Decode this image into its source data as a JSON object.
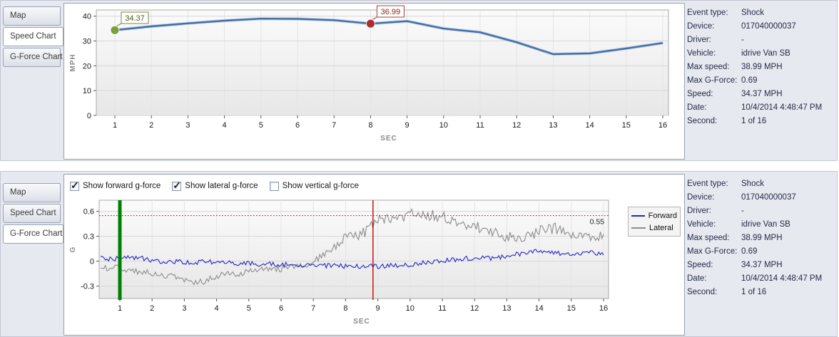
{
  "tabs": {
    "items": [
      "Map",
      "Speed Chart",
      "G-Force Chart"
    ],
    "top_active_index": 1,
    "bottom_active_index": 2
  },
  "checkboxes": [
    {
      "label": "Show forward g-force",
      "checked": true
    },
    {
      "label": "Show lateral g-force",
      "checked": true
    },
    {
      "label": "Show vertical g-force",
      "checked": false
    }
  ],
  "icons": {
    "check_glyph": "✓"
  },
  "event_info": {
    "rows": [
      {
        "label": "Event type:",
        "value": "Shock"
      },
      {
        "label": "Device:",
        "value": "017040000037"
      },
      {
        "label": "Driver:",
        "value": "-"
      },
      {
        "label": "Vehicle:",
        "value": "idrive Van SB"
      },
      {
        "label": "Max speed:",
        "value": "38.99 MPH"
      },
      {
        "label": "Max G-Force:",
        "value": "0.69"
      },
      {
        "label": "Speed:",
        "value": "34.37 MPH"
      },
      {
        "label": "Date:",
        "value": "10/4/2014 4:48:47 PM"
      },
      {
        "label": "Second:",
        "value": "1 of 16"
      }
    ]
  },
  "colors": {
    "panel_bg": "#e7e9f0",
    "speed_line": "#3f6fa8",
    "forward": "#2424c8",
    "lateral": "#8c8c8c",
    "green_marker": "#7aa03c",
    "red_marker": "#a92f2f",
    "green_vline": "#008000",
    "red_vline": "#cc1111",
    "dotted_hline": "#e00000",
    "info_text": "#232c45"
  },
  "chart_data": [
    {
      "id": "speed",
      "type": "line",
      "title": "",
      "xlabel": "SEC",
      "ylabel": "MPH",
      "x": [
        1,
        2,
        3,
        4,
        5,
        6,
        7,
        8,
        9,
        10,
        11,
        12,
        13,
        14,
        15,
        16
      ],
      "values": [
        34.37,
        35.9,
        37.1,
        38.2,
        39.0,
        38.9,
        38.4,
        36.99,
        38.0,
        35.0,
        33.5,
        29.5,
        24.7,
        25.0,
        27.0,
        29.2
      ],
      "xticks": [
        1,
        2,
        3,
        4,
        5,
        6,
        7,
        8,
        9,
        10,
        11,
        12,
        13,
        14,
        15,
        16
      ],
      "yticks": [
        0,
        10,
        20,
        30,
        40
      ],
      "ylim": [
        0,
        42.5
      ],
      "grid": true,
      "line_color": "#3f6fa8",
      "annotations": [
        {
          "x": 1,
          "y": 34.37,
          "label": "34.37",
          "marker_color": "#7aa03c",
          "box_border": "#7c8a45",
          "text_color": "#4c5b1e"
        },
        {
          "x": 8,
          "y": 36.99,
          "label": "36.99",
          "marker_color": "#a92f2f",
          "box_border": "#9c4444",
          "text_color": "#8b2222"
        }
      ]
    },
    {
      "id": "gforce",
      "type": "line",
      "title": "",
      "xlabel": "SEC",
      "ylabel": "G",
      "xticks": [
        1,
        2,
        3,
        4,
        5,
        6,
        7,
        8,
        9,
        10,
        11,
        12,
        13,
        14,
        15,
        16
      ],
      "yticks": [
        -0.3,
        0,
        0.3,
        0.6
      ],
      "ylim": [
        -0.45,
        0.735
      ],
      "grid": true,
      "legend": {
        "position": "right"
      },
      "noise_seed": 7,
      "series": [
        {
          "name": "Forward",
          "color": "#2424c8",
          "amp": 0.03,
          "anchors": [
            [
              1,
              0.03
            ],
            [
              1.5,
              0.05
            ],
            [
              2,
              0
            ],
            [
              3,
              -0.01
            ],
            [
              4,
              -0.01
            ],
            [
              5,
              -0.03
            ],
            [
              6,
              -0.04
            ],
            [
              7,
              -0.05
            ],
            [
              8,
              -0.06
            ],
            [
              9,
              -0.06
            ],
            [
              9.5,
              -0.05
            ],
            [
              10,
              -0.04
            ],
            [
              10.5,
              -0.02
            ],
            [
              11,
              0
            ],
            [
              11.5,
              0.02
            ],
            [
              12,
              0.04
            ],
            [
              12.5,
              0.03
            ],
            [
              13,
              0.06
            ],
            [
              13.5,
              0.1
            ],
            [
              14,
              0.12
            ],
            [
              14.5,
              0.1
            ],
            [
              15,
              0.08
            ],
            [
              15.5,
              0.11
            ],
            [
              16,
              0.09
            ]
          ]
        },
        {
          "name": "Lateral",
          "color": "#8c8c8c",
          "amp": 0.04,
          "anchors": [
            [
              1,
              -0.08
            ],
            [
              1.5,
              -0.12
            ],
            [
              2,
              -0.15
            ],
            [
              2.5,
              -0.17
            ],
            [
              3,
              -0.22
            ],
            [
              3.3,
              -0.26
            ],
            [
              3.6,
              -0.24
            ],
            [
              4,
              -0.18
            ],
            [
              4.5,
              -0.15
            ],
            [
              5,
              -0.13
            ],
            [
              5.5,
              -0.1
            ],
            [
              6,
              -0.09
            ],
            [
              6.5,
              -0.07
            ],
            [
              7,
              -0.01
            ],
            [
              7.5,
              0.12
            ],
            [
              8,
              0.27
            ],
            [
              8.5,
              0.33
            ],
            [
              8.8,
              0.42
            ],
            [
              9,
              0.5
            ],
            [
              9.5,
              0.5
            ],
            [
              10,
              0.56
            ],
            [
              10.3,
              0.6
            ],
            [
              10.6,
              0.55
            ],
            [
              11,
              0.55
            ],
            [
              11.5,
              0.46
            ],
            [
              12,
              0.42
            ],
            [
              12.5,
              0.35
            ],
            [
              13,
              0.3
            ],
            [
              13.5,
              0.26
            ],
            [
              14,
              0.37
            ],
            [
              14.5,
              0.4
            ],
            [
              15,
              0.34
            ],
            [
              15.5,
              0.31
            ],
            [
              16,
              0.29
            ]
          ]
        }
      ],
      "vlines": [
        {
          "x": 1,
          "color": "#008000",
          "width": 5
        },
        {
          "x": 8.85,
          "color": "#cc1111",
          "width": 1.5
        }
      ],
      "hlines": [
        {
          "y": 0.55,
          "color": "#e00000",
          "style": "dotted",
          "label": "0.55"
        }
      ]
    }
  ]
}
